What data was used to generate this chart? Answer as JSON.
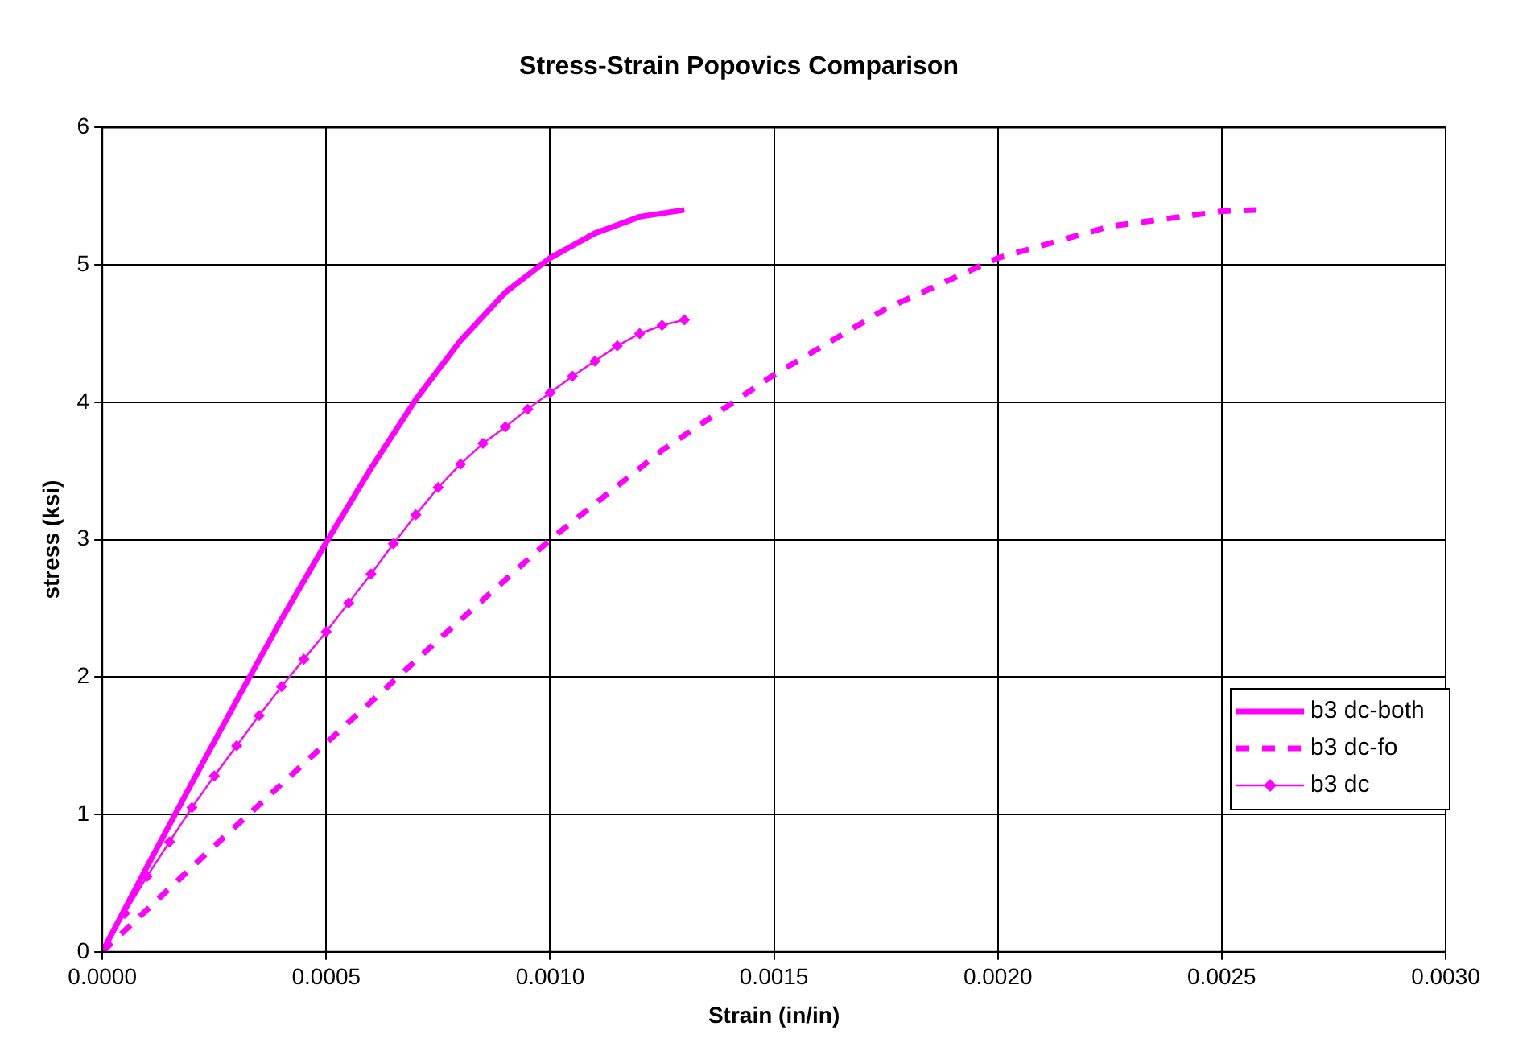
{
  "chart_data": {
    "type": "line",
    "title": "Stress-Strain Popovics Comparison",
    "xlabel": "Strain (in/in)",
    "ylabel": "stress (ksi)",
    "xlim": [
      0,
      0.003
    ],
    "xticks": [
      {
        "value": 0,
        "label": "0.0000"
      },
      {
        "value": 0.0005,
        "label": "0.0005"
      },
      {
        "value": 0.001,
        "label": "0.0010"
      },
      {
        "value": 0.0015,
        "label": "0.0015"
      },
      {
        "value": 0.002,
        "label": "0.0020"
      },
      {
        "value": 0.0025,
        "label": "0.0025"
      },
      {
        "value": 0.003,
        "label": "0.0030"
      }
    ],
    "ylim": [
      0,
      6
    ],
    "yticks": [
      0,
      1,
      2,
      3,
      4,
      5,
      6
    ],
    "grid": true,
    "legend": "right",
    "series": [
      {
        "name": "b3 dc-both",
        "color": "#ff00ff",
        "line_style": "solid",
        "marker": "none",
        "x": [
          0,
          0.0001,
          0.0002,
          0.0003,
          0.0004,
          0.0005,
          0.0006,
          0.0007,
          0.0008,
          0.0009,
          0.001,
          0.0011,
          0.0012,
          0.0013
        ],
        "values": [
          0,
          0.62,
          1.23,
          1.83,
          2.42,
          2.98,
          3.52,
          4.02,
          4.45,
          4.8,
          5.05,
          5.23,
          5.35,
          5.4
        ]
      },
      {
        "name": "b3 dc-fo",
        "color": "#ff00ff",
        "line_style": "dashed",
        "marker": "none",
        "x": [
          0,
          0.00025,
          0.0005,
          0.00075,
          0.001,
          0.00125,
          0.0015,
          0.00175,
          0.002,
          0.00225,
          0.0025,
          0.00258
        ],
        "values": [
          0,
          0.77,
          1.52,
          2.27,
          3.0,
          3.65,
          4.2,
          4.68,
          5.05,
          5.28,
          5.39,
          5.4
        ]
      },
      {
        "name": "b3 dc",
        "color": "#ff00ff",
        "line_style": "solid",
        "marker": "diamond",
        "x": [
          0,
          5e-05,
          0.0001,
          0.00015,
          0.0002,
          0.00025,
          0.0003,
          0.00035,
          0.0004,
          0.00045,
          0.0005,
          0.00055,
          0.0006,
          0.00065,
          0.0007,
          0.00075,
          0.0008,
          0.00085,
          0.0009,
          0.00095,
          0.001,
          0.00105,
          0.0011,
          0.00115,
          0.0012,
          0.00125,
          0.0013
        ],
        "values": [
          0,
          0.28,
          0.55,
          0.8,
          1.05,
          1.28,
          1.5,
          1.72,
          1.93,
          2.13,
          2.33,
          2.54,
          2.75,
          2.97,
          3.18,
          3.38,
          3.55,
          3.7,
          3.82,
          3.95,
          4.07,
          4.19,
          4.3,
          4.41,
          4.5,
          4.56,
          4.6
        ]
      }
    ]
  }
}
